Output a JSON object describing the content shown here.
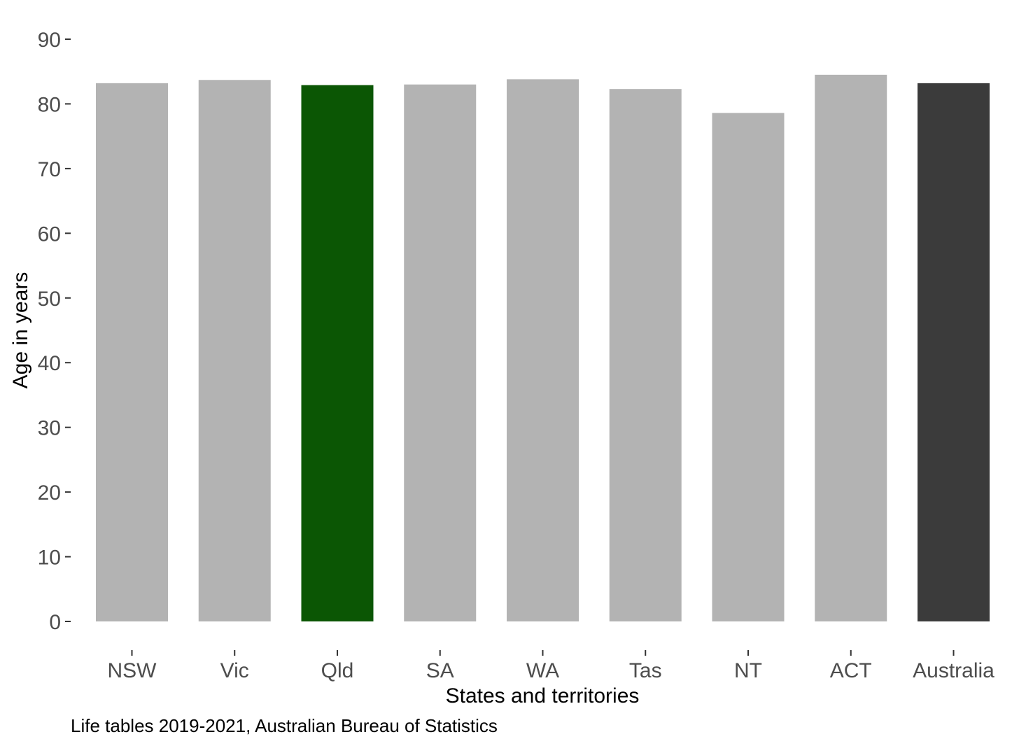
{
  "chart_data": {
    "type": "bar",
    "title": "",
    "xlabel": "States and territories",
    "ylabel": "Age in years",
    "caption": "Life tables 2019-2021, Australian Bureau of Statistics",
    "categories": [
      "NSW",
      "Vic",
      "Qld",
      "SA",
      "WA",
      "Tas",
      "NT",
      "ACT",
      "Australia"
    ],
    "values": [
      83.2,
      83.7,
      82.9,
      83.0,
      83.8,
      82.3,
      78.6,
      84.5,
      83.2
    ],
    "bar_colors": [
      "#b3b3b3",
      "#b3b3b3",
      "#0b5604",
      "#b3b3b3",
      "#b3b3b3",
      "#b3b3b3",
      "#b3b3b3",
      "#b3b3b3",
      "#3b3b3b"
    ],
    "ylim": [
      0,
      90
    ],
    "yticks": [
      "0",
      "10",
      "20",
      "30",
      "40",
      "50",
      "60",
      "70",
      "80",
      "90"
    ],
    "grid": false,
    "legend": "none"
  }
}
